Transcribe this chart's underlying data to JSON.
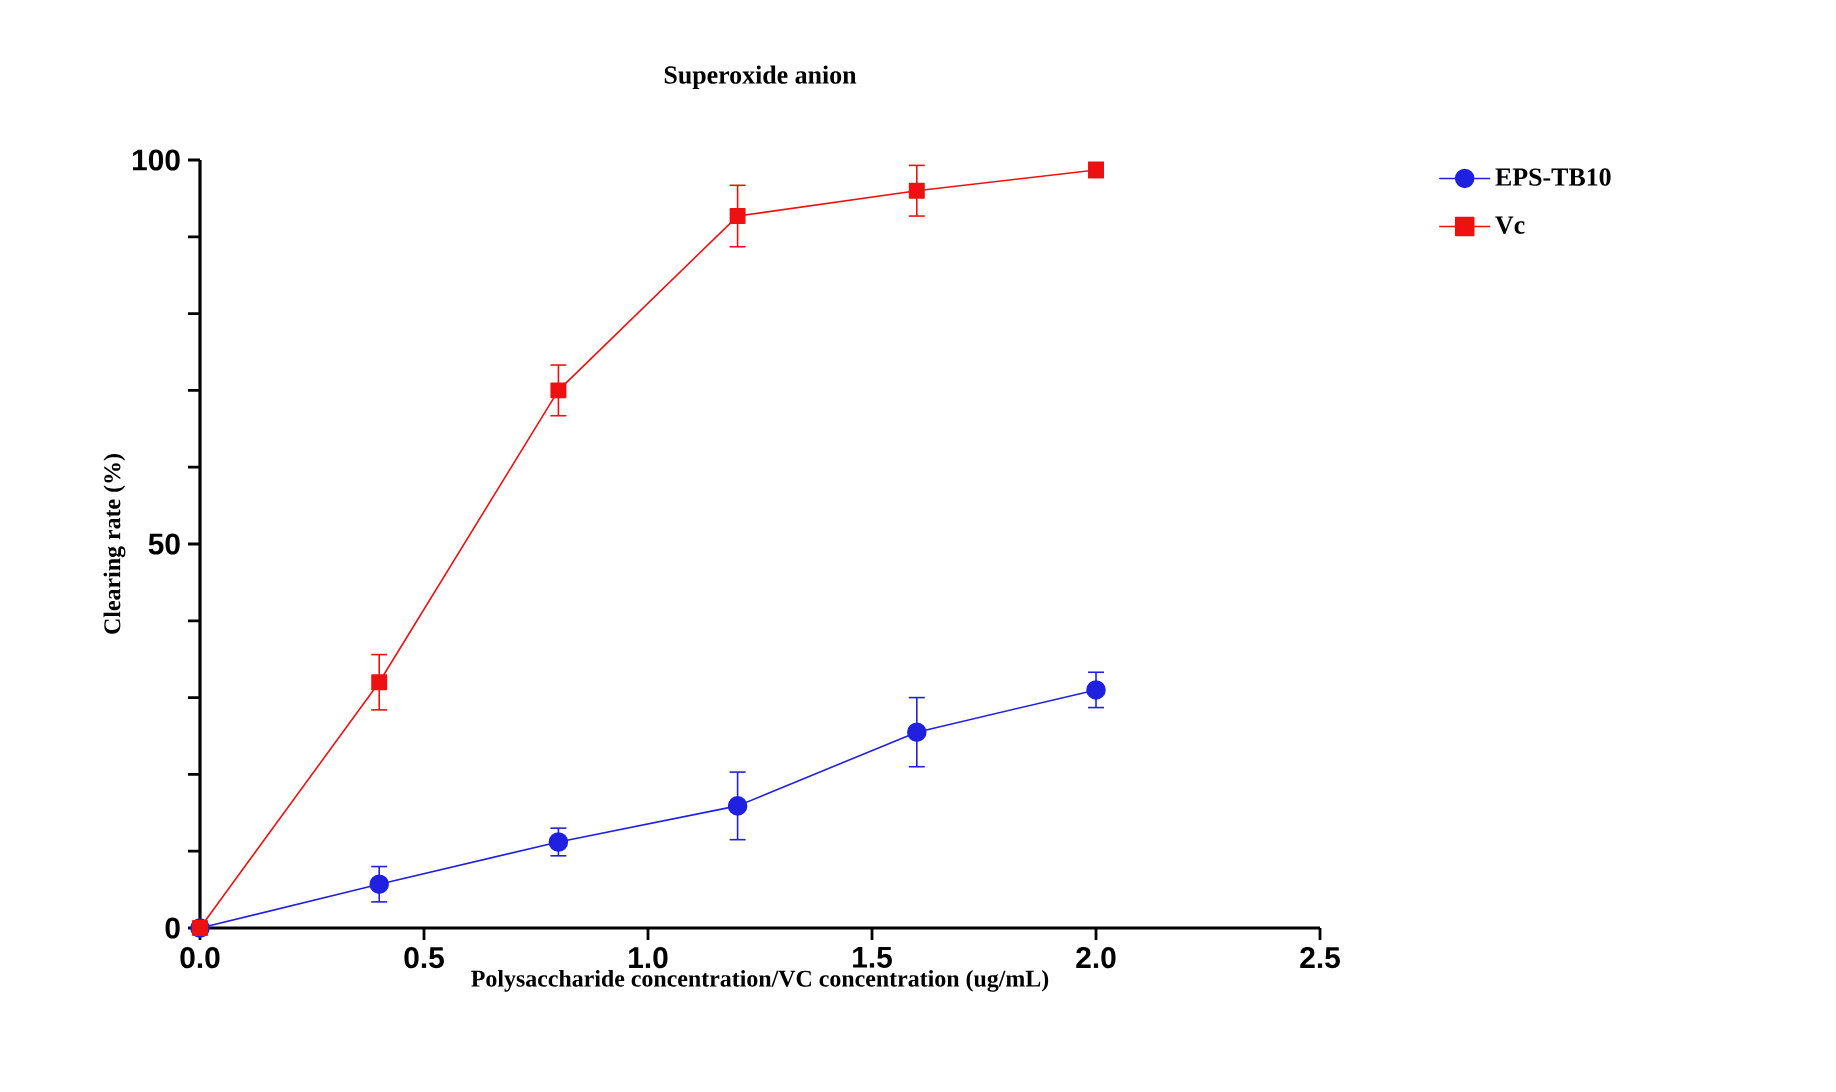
{
  "chart_data": {
    "type": "line",
    "title": "Superoxide anion",
    "xlabel": "Polysaccharide concentration/VC concentration (ug/mL)",
    "ylabel": "Clearing rate (%)",
    "xlim": [
      0,
      2.5
    ],
    "xticks": [
      {
        "value": 0,
        "label": "0.0"
      },
      {
        "value": 0.5,
        "label": "0.5"
      },
      {
        "value": 1,
        "label": "1.0"
      },
      {
        "value": 1.5,
        "label": "1.5"
      },
      {
        "value": 2,
        "label": "2.0"
      },
      {
        "value": 2.5,
        "label": "2.5"
      }
    ],
    "ylim": [
      0,
      100
    ],
    "yticks": [
      0,
      {
        "value": 10,
        "label": null
      },
      {
        "value": 20,
        "label": null
      },
      {
        "value": 30,
        "label": null
      },
      {
        "value": 40,
        "label": null
      },
      50,
      {
        "value": 60,
        "label": null
      },
      {
        "value": 70,
        "label": null
      },
      {
        "value": 80,
        "label": null
      },
      {
        "value": 90,
        "label": null
      },
      100
    ],
    "x": [
      0,
      0.4,
      0.8,
      1.2,
      1.6,
      2.0
    ],
    "series": [
      {
        "name": "EPS-TB10",
        "color": "#2020e0",
        "marker": "circle",
        "values": [
          0,
          5.7,
          11.2,
          15.9,
          25.5,
          31
        ],
        "errors": [
          null,
          2.3,
          1.8,
          4.4,
          4.5,
          2.3
        ]
      },
      {
        "name": "Vc",
        "color": "#ee1111",
        "marker": "square",
        "values": [
          0,
          32,
          70,
          92.7,
          96,
          98.7
        ],
        "errors": [
          null,
          3.6,
          3.3,
          4,
          3.3,
          1
        ]
      }
    ],
    "legend": "top right",
    "grid": false,
    "line_style": "solid"
  }
}
